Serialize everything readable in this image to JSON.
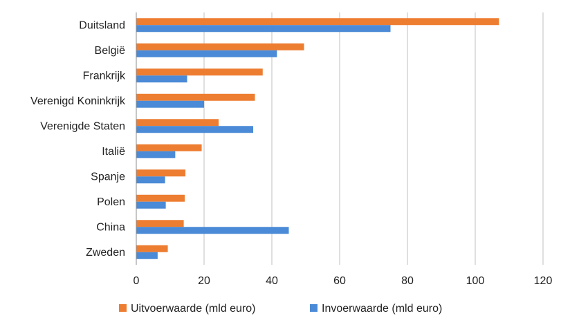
{
  "chart_data": {
    "type": "bar",
    "orientation": "horizontal",
    "categories": [
      "Duitsland",
      "België",
      "Frankrijk",
      "Verenigd Koninkrijk",
      "Verenigde Staten",
      "Italië",
      "Spanje",
      "Polen",
      "China",
      "Zweden"
    ],
    "series": [
      {
        "name": "Uitvoerwaarde (mld euro)",
        "color": "#ed7d31",
        "values": [
          107,
          49.5,
          37.3,
          35,
          24.3,
          19.3,
          14.5,
          14.3,
          14,
          9.3
        ]
      },
      {
        "name": "Invoerwaarde (mld euro)",
        "color": "#4a8ad6",
        "values": [
          75,
          41.5,
          15,
          20,
          34.5,
          11.5,
          8.5,
          8.7,
          45,
          6.3
        ]
      }
    ],
    "xlim": [
      0,
      120
    ],
    "xticks": [
      0,
      20,
      40,
      60,
      80,
      100,
      120
    ],
    "grid": true,
    "legend_position": "bottom"
  }
}
